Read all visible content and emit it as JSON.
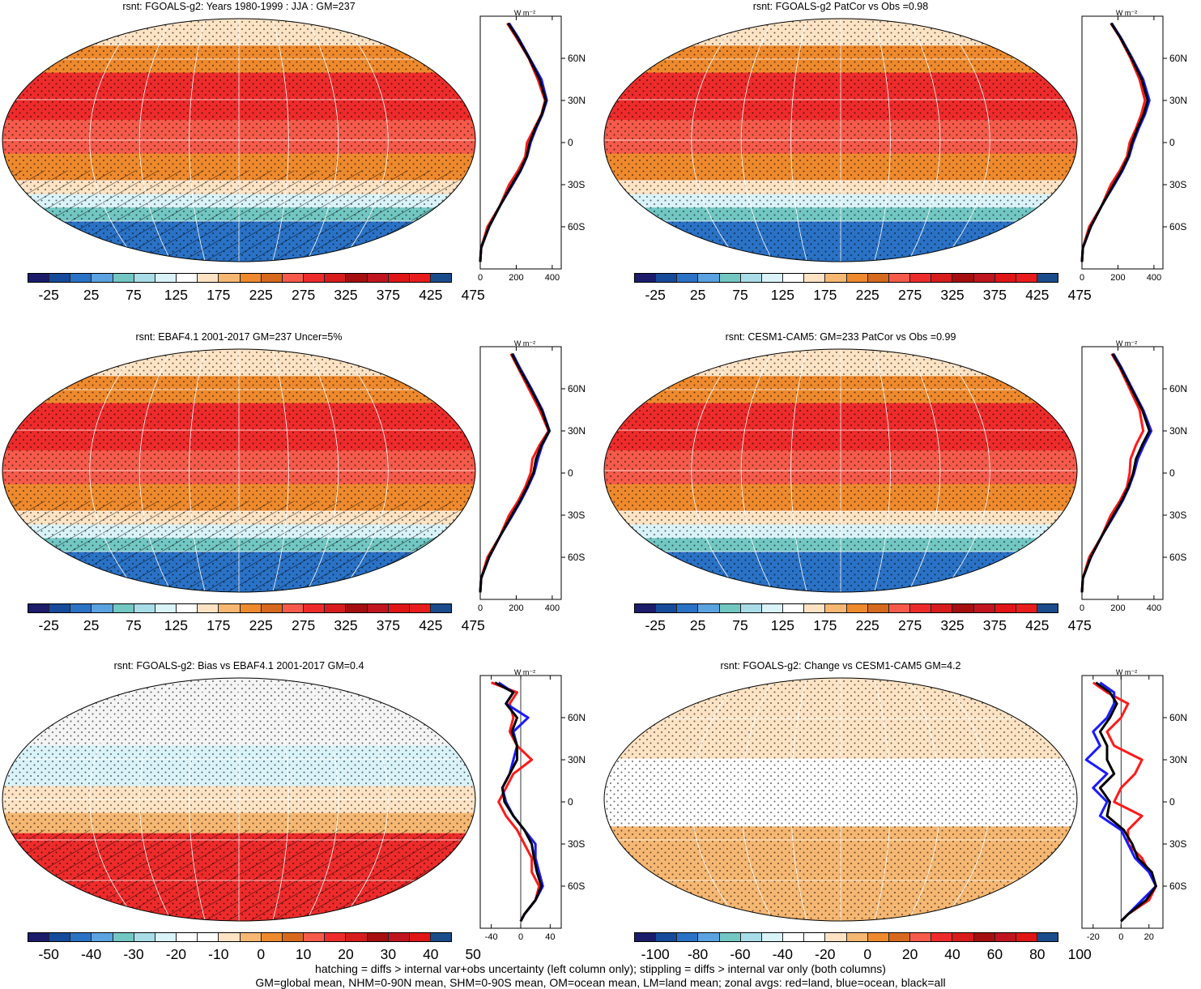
{
  "units_label": "W m⁻²",
  "footer": {
    "line1": "hatching = diffs > internal var+obs uncertainty (left column only); stippling = diffs > internal var only (both columns)",
    "line2": "GM=global mean, NHM=0-90N mean, SHM=0-90S mean, OM=ocean mean, LM=land mean; zonal avgs: red=land, blue=ocean, black=all"
  },
  "colors": {
    "land": "#ff1a1a",
    "ocean": "#1a1aff",
    "all": "#000000"
  },
  "colorbar_palette": [
    "#1c1c6b",
    "#164a9a",
    "#2a72c6",
    "#5aa2e0",
    "#72c7c3",
    "#a8dde8",
    "#d9f3f8",
    "#ffffff",
    "#fde3c4",
    "#f5b772",
    "#ee8a2d",
    "#d6691d",
    "#f55a4a",
    "#ee2b2b",
    "#d81c1c",
    "#a50f0f",
    "#c0151f",
    "#e01515",
    "#e81c1c",
    "#1a4c8c"
  ],
  "chart_data": [
    {
      "type": "heatmap",
      "title": "rsnt: FGOALS-g2: Years 1980-1999 : JJA : GM=237",
      "colorbar_ticks": [
        "-25",
        "25",
        "75",
        "125",
        "175",
        "225",
        "275",
        "325",
        "375",
        "425",
        "475"
      ],
      "hatching": true,
      "stippling": true,
      "zonal_mean": {
        "type": "line",
        "x_ticks": [
          "0",
          "200",
          "400"
        ],
        "xlim": [
          0,
          450
        ],
        "y_ticks": [
          "60N",
          "30N",
          "0",
          "30S",
          "60S"
        ],
        "ylim": [
          -90,
          90
        ],
        "lat": [
          85,
          75,
          60,
          45,
          30,
          20,
          10,
          0,
          -10,
          -20,
          -30,
          -45,
          -60,
          -75,
          -85
        ],
        "series": [
          {
            "color": "land",
            "values": [
              150,
              200,
              270,
              320,
              360,
              340,
              300,
              260,
              250,
              210,
              160,
              110,
              40,
              5,
              0
            ]
          },
          {
            "color": "ocean",
            "values": [
              160,
              210,
              275,
              340,
              370,
              345,
              310,
              280,
              260,
              225,
              180,
              110,
              50,
              5,
              0
            ]
          },
          {
            "color": "all",
            "values": [
              155,
              205,
              272,
              330,
              365,
              342,
              305,
              275,
              258,
              222,
              175,
              110,
              48,
              5,
              0
            ]
          }
        ]
      }
    },
    {
      "type": "heatmap",
      "title": "rsnt: FGOALS-g2 PatCor vs Obs =0.98",
      "colorbar_ticks": [
        "-25",
        "25",
        "75",
        "125",
        "175",
        "225",
        "275",
        "325",
        "375",
        "425",
        "475"
      ],
      "hatching": false,
      "stippling": true,
      "zonal_mean": {
        "type": "line",
        "x_ticks": [
          "0",
          "200",
          "400"
        ],
        "xlim": [
          0,
          450
        ],
        "y_ticks": [
          "60N",
          "30N",
          "0",
          "30S",
          "60S"
        ],
        "ylim": [
          -90,
          90
        ],
        "lat": [
          85,
          75,
          60,
          45,
          30,
          20,
          10,
          0,
          -10,
          -20,
          -30,
          -45,
          -60,
          -75,
          -85
        ],
        "series": [
          {
            "color": "land",
            "values": [
              160,
              210,
              270,
              320,
              350,
              330,
              300,
              265,
              250,
              210,
              160,
              110,
              40,
              5,
              0
            ]
          },
          {
            "color": "ocean",
            "values": [
              165,
              215,
              280,
              340,
              375,
              350,
              315,
              285,
              262,
              225,
              180,
              110,
              50,
              5,
              0
            ]
          },
          {
            "color": "all",
            "values": [
              162,
              212,
              276,
              332,
              365,
              343,
              308,
              278,
              258,
              220,
              175,
              110,
              48,
              5,
              0
            ]
          }
        ]
      }
    },
    {
      "type": "heatmap",
      "title": "rsnt: EBAF4.1 2001-2017 GM=237 Uncer=5%",
      "colorbar_ticks": [
        "-25",
        "25",
        "75",
        "125",
        "175",
        "225",
        "275",
        "325",
        "375",
        "425",
        "475"
      ],
      "hatching": true,
      "stippling": true,
      "zonal_mean": {
        "type": "line",
        "x_ticks": [
          "0",
          "200",
          "400"
        ],
        "xlim": [
          0,
          450
        ],
        "y_ticks": [
          "60N",
          "30N",
          "0",
          "30S",
          "60S"
        ],
        "ylim": [
          -90,
          90
        ],
        "lat": [
          85,
          75,
          60,
          45,
          30,
          20,
          10,
          0,
          -10,
          -20,
          -30,
          -45,
          -60,
          -75,
          -85
        ],
        "series": [
          {
            "color": "land",
            "values": [
              170,
              210,
              270,
              330,
              380,
              330,
              290,
              280,
              250,
              210,
              160,
              110,
              40,
              5,
              0
            ]
          },
          {
            "color": "ocean",
            "values": [
              180,
              220,
              285,
              345,
              385,
              345,
              320,
              300,
              265,
              225,
              180,
              110,
              50,
              5,
              0
            ]
          },
          {
            "color": "all",
            "values": [
              175,
              215,
              280,
              340,
              383,
              340,
              310,
              295,
              260,
              220,
              175,
              110,
              48,
              5,
              0
            ]
          }
        ]
      }
    },
    {
      "type": "heatmap",
      "title": "rsnt: CESM1-CAM5: GM=233 PatCor vs Obs =0.99",
      "colorbar_ticks": [
        "-25",
        "25",
        "75",
        "125",
        "175",
        "225",
        "275",
        "325",
        "375",
        "425",
        "475"
      ],
      "hatching": false,
      "stippling": true,
      "zonal_mean": {
        "type": "line",
        "x_ticks": [
          "0",
          "200",
          "400"
        ],
        "xlim": [
          0,
          450
        ],
        "y_ticks": [
          "60N",
          "30N",
          "0",
          "30S",
          "60S"
        ],
        "ylim": [
          -90,
          90
        ],
        "lat": [
          85,
          75,
          60,
          45,
          30,
          20,
          10,
          0,
          -10,
          -20,
          -30,
          -45,
          -60,
          -75,
          -85
        ],
        "series": [
          {
            "color": "land",
            "values": [
              165,
              210,
              265,
              320,
              340,
              300,
              270,
              265,
              250,
              210,
              160,
              110,
              40,
              5,
              0
            ]
          },
          {
            "color": "ocean",
            "values": [
              175,
              220,
              280,
              340,
              385,
              345,
              310,
              290,
              262,
              225,
              180,
              110,
              50,
              5,
              0
            ]
          },
          {
            "color": "all",
            "values": [
              170,
              215,
              275,
              335,
              375,
              335,
              300,
              285,
              258,
              220,
              175,
              110,
              48,
              5,
              0
            ]
          }
        ]
      }
    },
    {
      "type": "heatmap",
      "title": "rsnt: FGOALS-g2: Bias vs EBAF4.1 2001-2017 GM=0.4",
      "colorbar_ticks": [
        "-50",
        "-40",
        "-30",
        "-20",
        "-10",
        "0",
        "10",
        "20",
        "30",
        "40",
        "50"
      ],
      "hatching": true,
      "stippling": true,
      "zonal_mean": {
        "type": "line",
        "x_ticks": [
          "-40",
          "0",
          "40"
        ],
        "xlim": [
          -55,
          55
        ],
        "y_ticks": [
          "60N",
          "30N",
          "0",
          "30S",
          "60S"
        ],
        "ylim": [
          -90,
          90
        ],
        "lat": [
          85,
          78,
          70,
          60,
          50,
          40,
          30,
          20,
          10,
          0,
          -10,
          -20,
          -30,
          -40,
          -50,
          -60,
          -70,
          -80,
          -85
        ],
        "series": [
          {
            "color": "land",
            "values": [
              -40,
              -5,
              -15,
              -10,
              -15,
              -5,
              15,
              -10,
              -20,
              -30,
              -20,
              -5,
              5,
              15,
              15,
              25,
              20,
              5,
              0
            ]
          },
          {
            "color": "ocean",
            "values": [
              -30,
              -10,
              -20,
              10,
              -10,
              -5,
              -10,
              -15,
              -25,
              -20,
              -10,
              5,
              20,
              20,
              25,
              30,
              20,
              5,
              0
            ]
          },
          {
            "color": "all",
            "values": [
              -35,
              -10,
              -20,
              -5,
              -12,
              -5,
              -5,
              -15,
              -25,
              -22,
              -10,
              5,
              15,
              18,
              22,
              28,
              20,
              5,
              0
            ]
          }
        ]
      }
    },
    {
      "type": "heatmap",
      "title": "rsnt: FGOALS-g2: Change vs CESM1-CAM5 GM=4.2",
      "colorbar_ticks": [
        "-100",
        "-80",
        "-60",
        "-40",
        "-20",
        "0",
        "20",
        "40",
        "60",
        "80",
        "100"
      ],
      "hatching": false,
      "stippling": true,
      "zonal_mean": {
        "type": "line",
        "x_ticks": [
          "-20",
          "0",
          "20"
        ],
        "xlim": [
          -28,
          30
        ],
        "y_ticks": [
          "60N",
          "30N",
          "0",
          "30S",
          "60S"
        ],
        "ylim": [
          -90,
          90
        ],
        "lat": [
          85,
          78,
          70,
          60,
          50,
          40,
          30,
          20,
          10,
          0,
          -10,
          -20,
          -30,
          -40,
          -50,
          -60,
          -70,
          -80,
          -85
        ],
        "series": [
          {
            "color": "land",
            "values": [
              -20,
              -10,
              5,
              0,
              -10,
              -5,
              15,
              10,
              0,
              -5,
              15,
              5,
              5,
              15,
              20,
              25,
              20,
              5,
              0
            ]
          },
          {
            "color": "ocean",
            "values": [
              -15,
              -5,
              -5,
              -10,
              -20,
              -15,
              -25,
              -10,
              -20,
              -10,
              -15,
              0,
              5,
              10,
              20,
              25,
              15,
              5,
              0
            ]
          },
          {
            "color": "all",
            "values": [
              -18,
              -8,
              -3,
              -8,
              -15,
              -10,
              -10,
              -5,
              -15,
              -8,
              -10,
              2,
              8,
              12,
              22,
              25,
              18,
              5,
              0
            ]
          }
        ]
      }
    }
  ]
}
